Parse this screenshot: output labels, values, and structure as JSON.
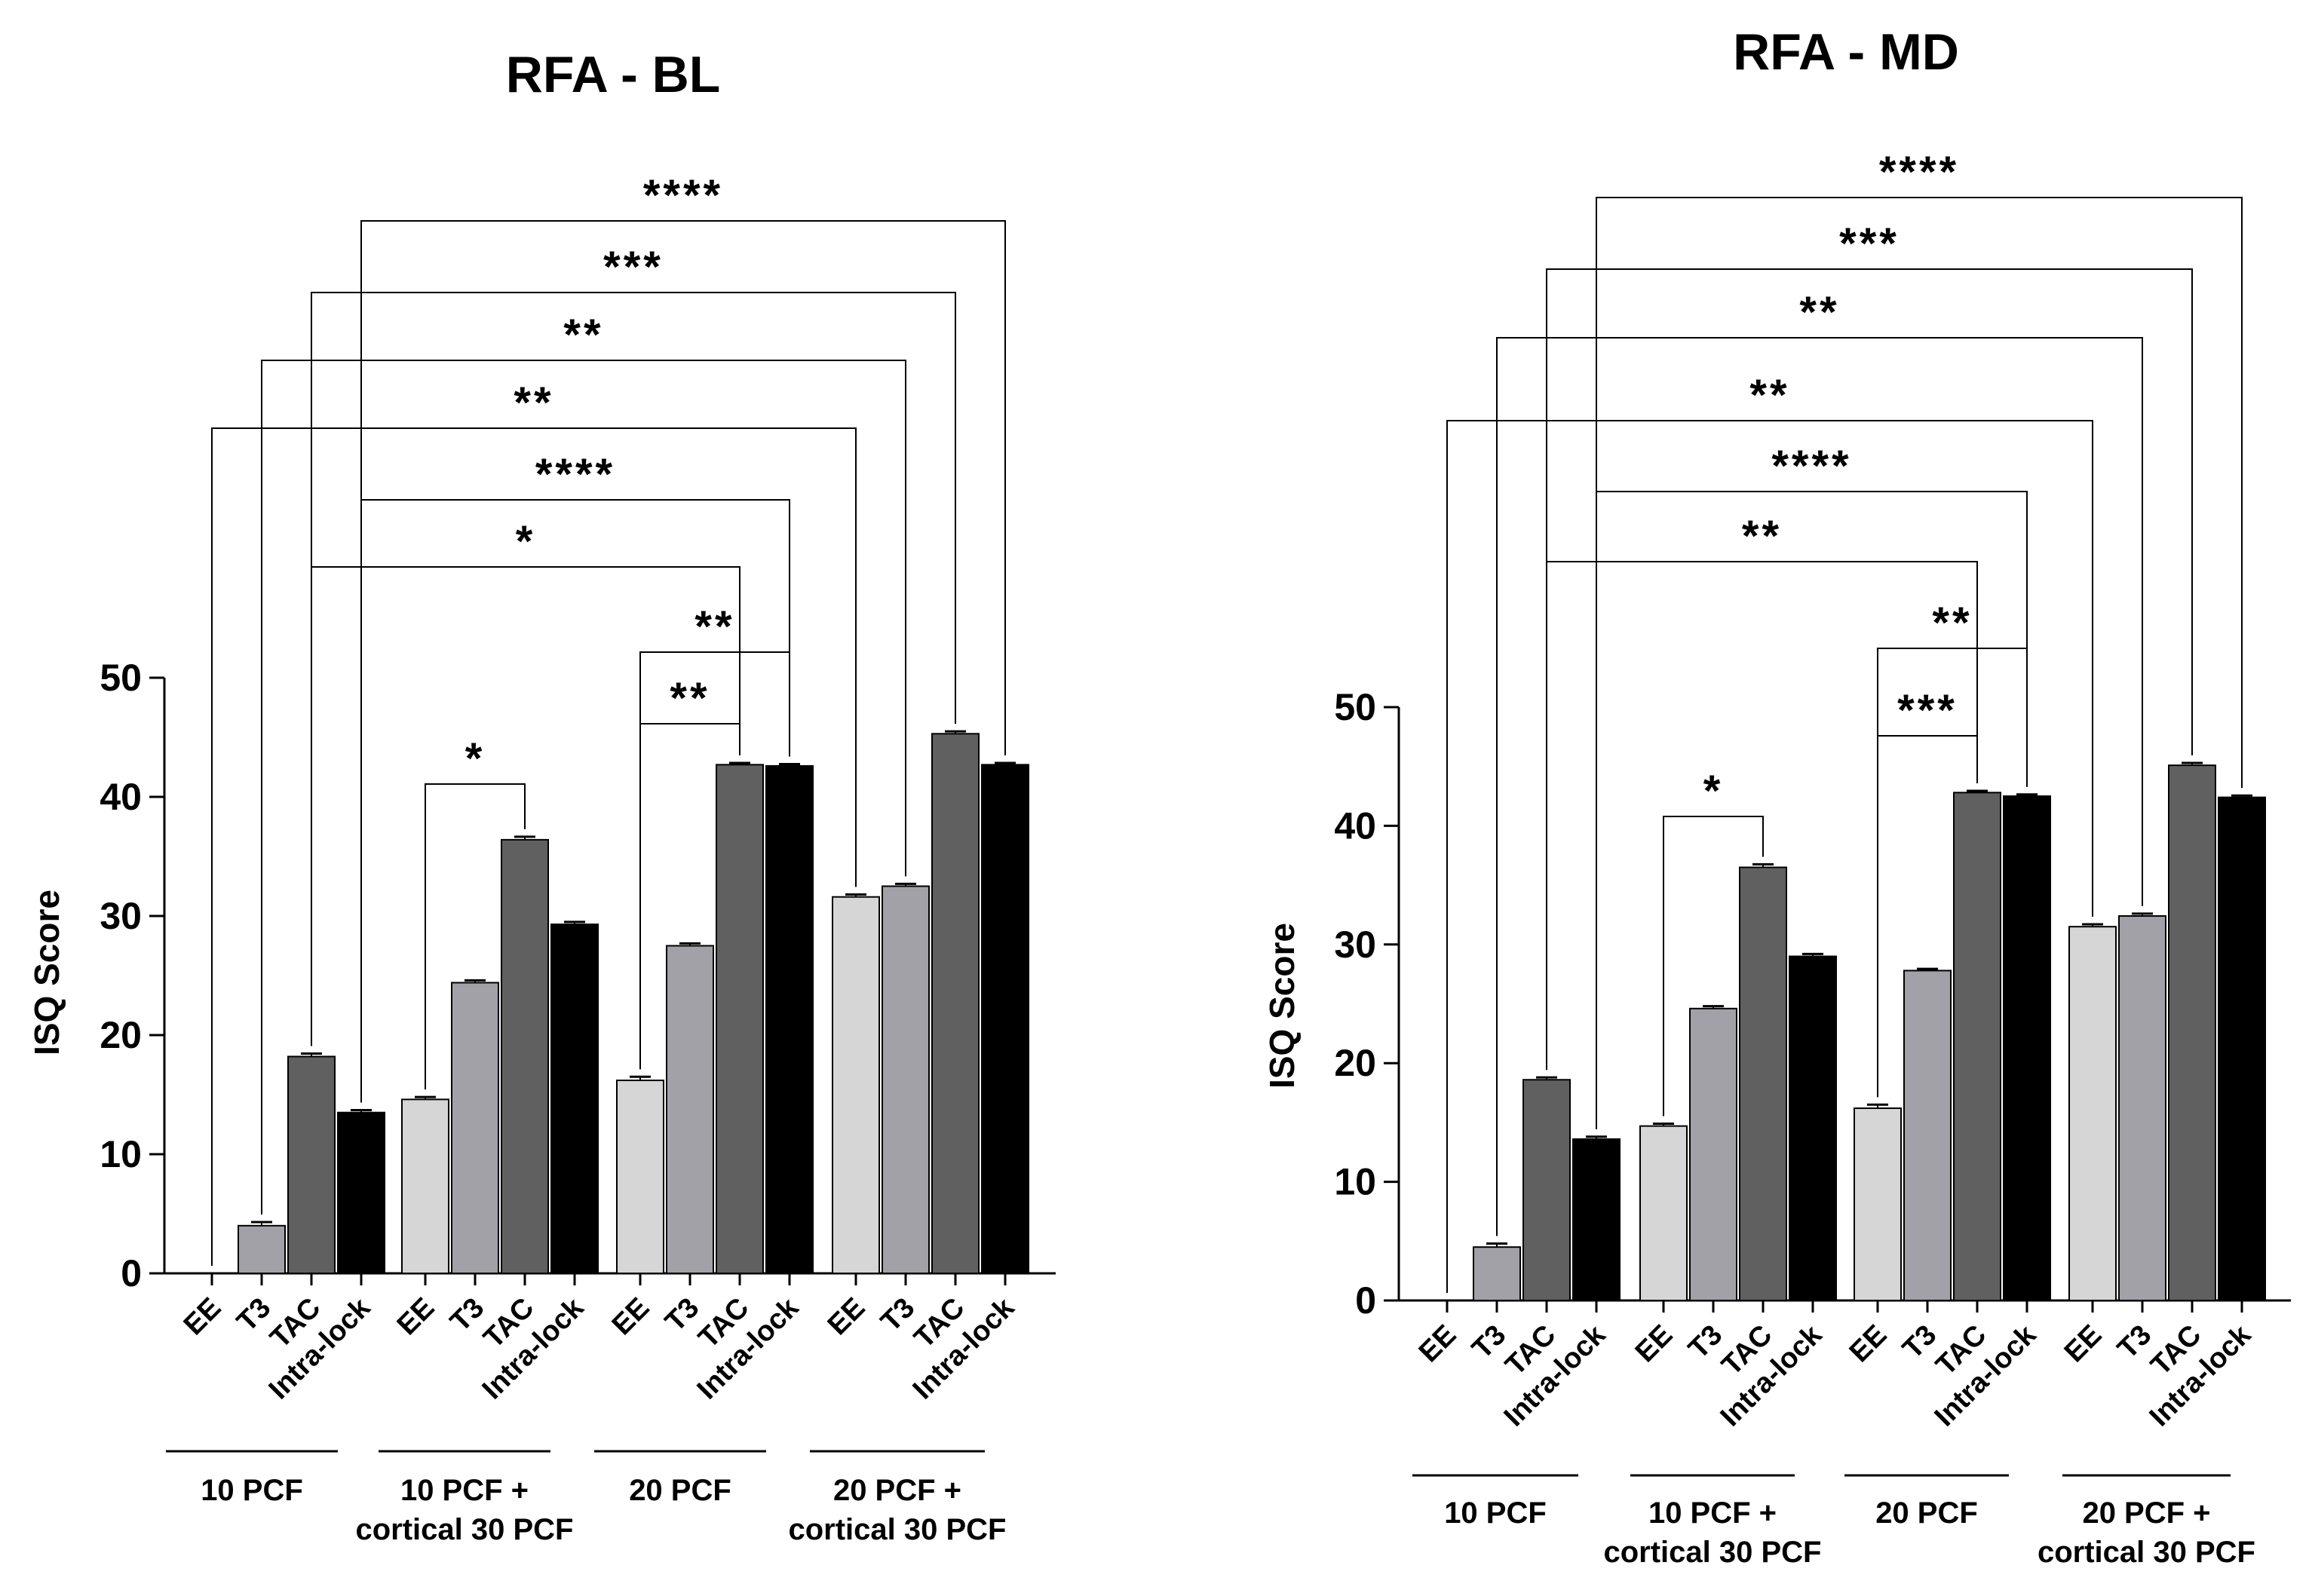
{
  "chart_data": [
    {
      "type": "bar",
      "title": "RFA - BL",
      "ylabel": "ISQ Score",
      "ylim": [
        0,
        50
      ],
      "yticks": [
        0,
        10,
        20,
        30,
        40,
        50
      ],
      "categories": [
        "EE",
        "T3",
        "TAC",
        "Intra-lock"
      ],
      "groups": [
        {
          "label_lines": [
            "10 PCF"
          ],
          "values": [
            0,
            4.0,
            18.2,
            13.5
          ],
          "errors": [
            0,
            0.3,
            0.25,
            0.2
          ]
        },
        {
          "label_lines": [
            "10 PCF +",
            "cortical 30 PCF"
          ],
          "values": [
            14.6,
            24.4,
            36.4,
            29.3
          ],
          "errors": [
            0.2,
            0.2,
            0.25,
            0.2
          ]
        },
        {
          "label_lines": [
            "20 PCF"
          ],
          "values": [
            16.2,
            27.5,
            42.7,
            42.6
          ],
          "errors": [
            0.3,
            0.2,
            0.15,
            0.15
          ]
        },
        {
          "label_lines": [
            "20 PCF +",
            "cortical 30 PCF"
          ],
          "values": [
            31.6,
            32.5,
            45.3,
            42.7
          ],
          "errors": [
            0.2,
            0.2,
            0.2,
            0.15
          ]
        }
      ],
      "bar_colors": [
        "#d6d6d6",
        "#a2a1a7",
        "#606060",
        "#000000"
      ],
      "comparisons": [
        {
          "from": [
            1,
            0
          ],
          "to": [
            1,
            2
          ],
          "label": "*"
        },
        {
          "from": [
            2,
            0
          ],
          "to": [
            2,
            2
          ],
          "label": "**"
        },
        {
          "from": [
            2,
            0
          ],
          "to": [
            2,
            3
          ],
          "label": "**"
        },
        {
          "from": [
            0,
            2
          ],
          "to": [
            2,
            2
          ],
          "label": "*"
        },
        {
          "from": [
            0,
            3
          ],
          "to": [
            2,
            3
          ],
          "label": "****"
        },
        {
          "from": [
            0,
            0
          ],
          "to": [
            3,
            0
          ],
          "label": "**"
        },
        {
          "from": [
            0,
            1
          ],
          "to": [
            3,
            1
          ],
          "label": "**"
        },
        {
          "from": [
            0,
            2
          ],
          "to": [
            3,
            2
          ],
          "label": "***"
        },
        {
          "from": [
            0,
            3
          ],
          "to": [
            3,
            3
          ],
          "label": "****"
        }
      ]
    },
    {
      "type": "bar",
      "title": "RFA - MD",
      "ylabel": "ISQ Score",
      "ylim": [
        0,
        50
      ],
      "yticks": [
        0,
        10,
        20,
        30,
        40,
        50
      ],
      "categories": [
        "EE",
        "T3",
        "TAC",
        "Intra-lock"
      ],
      "groups": [
        {
          "label_lines": [
            "10 PCF"
          ],
          "values": [
            0,
            4.5,
            18.6,
            13.6
          ],
          "errors": [
            0,
            0.3,
            0.2,
            0.2
          ]
        },
        {
          "label_lines": [
            "10 PCF +",
            "cortical 30 PCF"
          ],
          "values": [
            14.7,
            24.6,
            36.5,
            29.0
          ],
          "errors": [
            0.2,
            0.2,
            0.25,
            0.2
          ]
        },
        {
          "label_lines": [
            "20 PCF"
          ],
          "values": [
            16.2,
            27.8,
            42.8,
            42.5
          ],
          "errors": [
            0.3,
            0.15,
            0.15,
            0.15
          ]
        },
        {
          "label_lines": [
            "20 PCF +",
            "cortical 30 PCF"
          ],
          "values": [
            31.5,
            32.4,
            45.1,
            42.4
          ],
          "errors": [
            0.2,
            0.2,
            0.2,
            0.15
          ]
        }
      ],
      "bar_colors": [
        "#d6d6d6",
        "#a2a1a7",
        "#606060",
        "#000000"
      ],
      "comparisons": [
        {
          "from": [
            1,
            0
          ],
          "to": [
            1,
            2
          ],
          "label": "*"
        },
        {
          "from": [
            2,
            0
          ],
          "to": [
            2,
            2
          ],
          "label": "***"
        },
        {
          "from": [
            2,
            0
          ],
          "to": [
            2,
            3
          ],
          "label": "**"
        },
        {
          "from": [
            0,
            2
          ],
          "to": [
            2,
            2
          ],
          "label": "**"
        },
        {
          "from": [
            0,
            3
          ],
          "to": [
            2,
            3
          ],
          "label": "****"
        },
        {
          "from": [
            0,
            0
          ],
          "to": [
            3,
            0
          ],
          "label": "**"
        },
        {
          "from": [
            0,
            1
          ],
          "to": [
            3,
            1
          ],
          "label": "**"
        },
        {
          "from": [
            0,
            2
          ],
          "to": [
            3,
            2
          ],
          "label": "***"
        },
        {
          "from": [
            0,
            3
          ],
          "to": [
            3,
            3
          ],
          "label": "****"
        }
      ]
    }
  ]
}
